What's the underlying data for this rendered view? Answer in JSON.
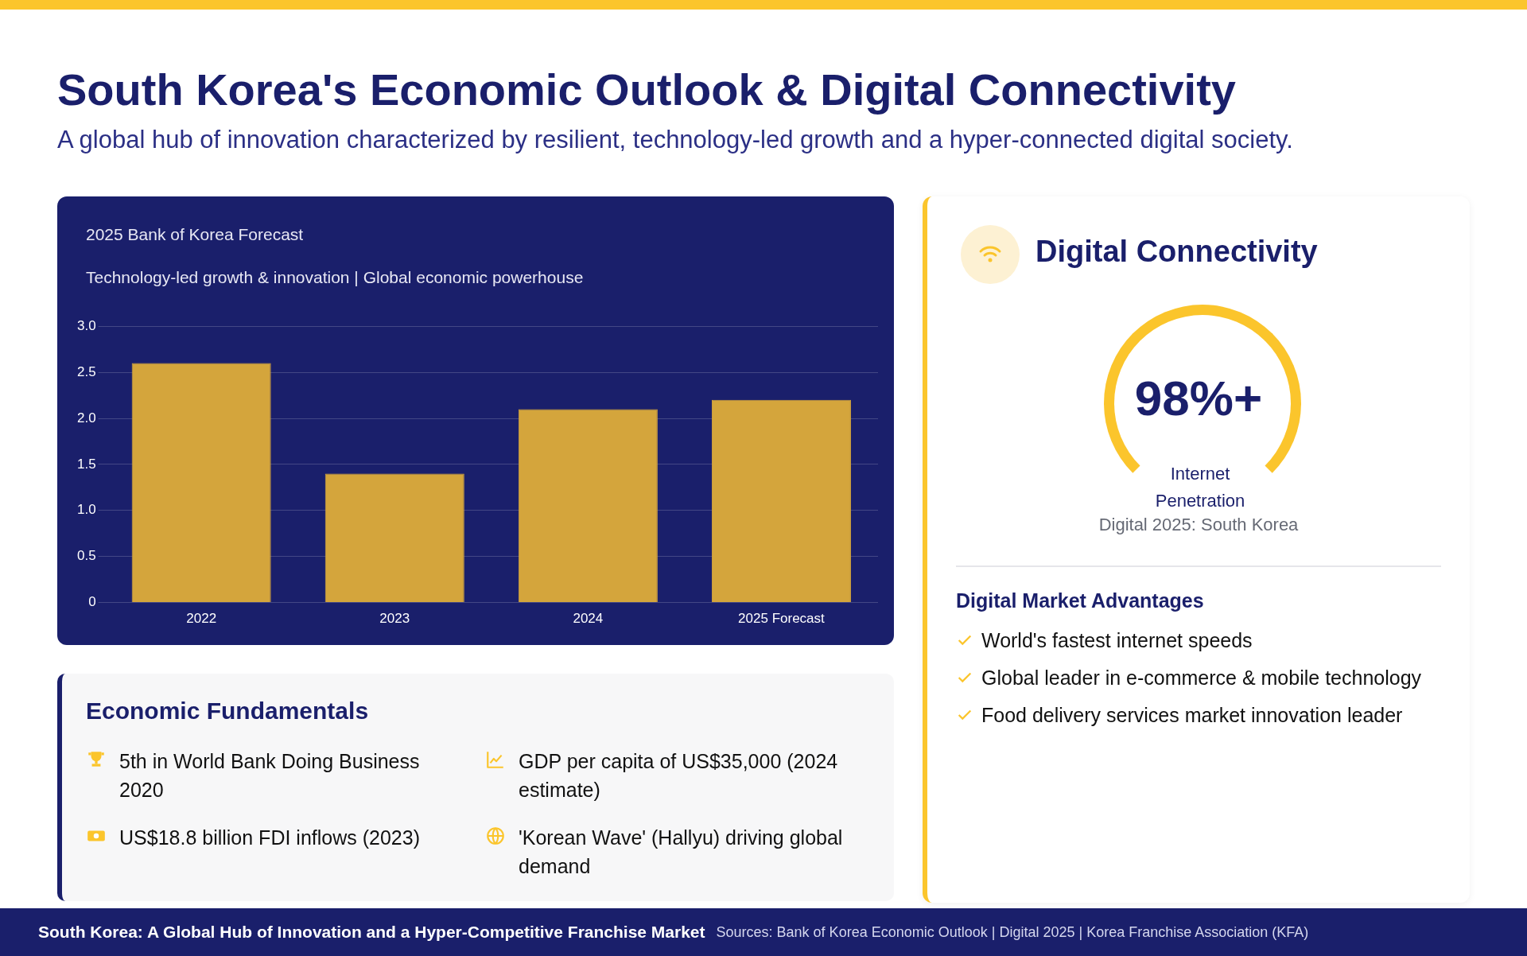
{
  "chart_data": [
    {
      "type": "other",
      "title": "South Korea's Economic Outlook & Digital Connectivity",
      "subtitle": "A global hub of innovation characterized by resilient, technology-led growth and a hyper-connected digital society.",
      "annotations": [
        "South Korea: A Global Hub of Innovation and a Hyper-Competitive Franchise Market",
        "Sources: Bank of Korea Economic Outlook | Digital 2025 | Korea Franchise Association (KFA)"
      ]
    },
    {
      "type": "bar",
      "title": "2025 Bank of Korea Forecast",
      "subtitle": "Technology-led growth & innovation | Global economic powerhouse",
      "categories": [
        "2022",
        "2023",
        "2024",
        "2025 Forecast"
      ],
      "values": [
        2.6,
        1.4,
        2.1,
        2.2
      ],
      "color": "#d4a53c",
      "ylim": [
        0,
        3
      ],
      "yticks": [
        0,
        0.5,
        {
          "value": 1,
          "label": "1.0"
        },
        1.5,
        {
          "value": 2,
          "label": "2.0"
        },
        2.5,
        {
          "value": 3,
          "label": "3.0"
        }
      ],
      "grid": "y"
    },
    {
      "type": "other",
      "title": "Economic Fundamentals",
      "annotations": [
        "5th in World Bank Doing Business 2020",
        "GDP per capita of US$35,000 (2024 estimate)",
        "US$18.8 billion FDI inflows (2023)",
        "'Korean Wave' (Hallyu) driving global demand"
      ]
    },
    {
      "type": "other",
      "title": "Digital Connectivity",
      "annotations": [
        "98%+",
        "Internet Penetration",
        "Digital 2025: South Korea",
        "Digital Market Advantages",
        "World's fastest internet speeds",
        "Global leader in e-commerce & mobile technology",
        "Food delivery services market innovation leader"
      ]
    }
  ]
}
